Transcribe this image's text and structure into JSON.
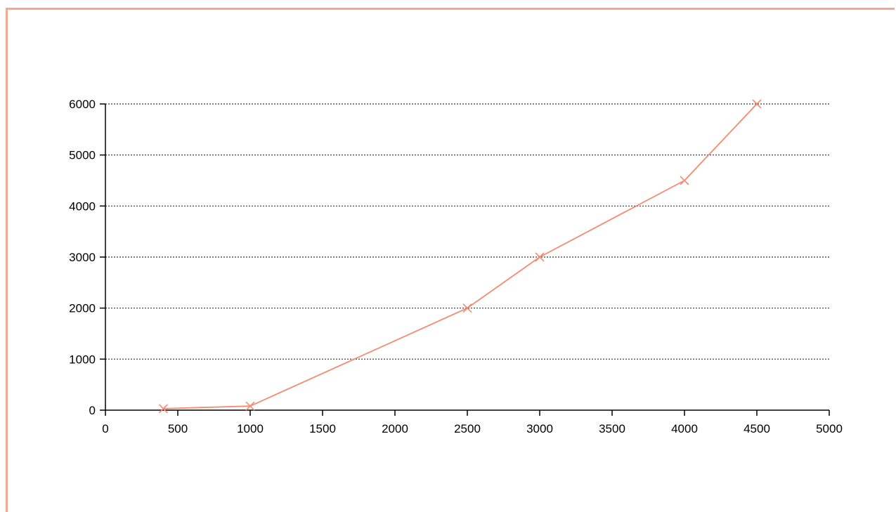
{
  "chart_data": {
    "type": "line",
    "title": "",
    "xlabel": "",
    "ylabel": "",
    "xlim": [
      0,
      5000
    ],
    "ylim": [
      0,
      6000
    ],
    "x_ticks": [
      0,
      500,
      1000,
      1500,
      2000,
      2500,
      3000,
      3500,
      4000,
      4500,
      5000
    ],
    "y_ticks": [
      0,
      1000,
      2000,
      3000,
      4000,
      5000,
      6000
    ],
    "grid": "horizontal dotted",
    "legend": "none",
    "series": [
      {
        "color": "#f58b70",
        "marker": "x",
        "points": [
          {
            "x": 400,
            "y": 30
          },
          {
            "x": 1000,
            "y": 80
          },
          {
            "x": 2500,
            "y": 2000
          },
          {
            "x": 3000,
            "y": 3000
          },
          {
            "x": 4000,
            "y": 4500
          },
          {
            "x": 4500,
            "y": 6000
          }
        ]
      }
    ]
  }
}
